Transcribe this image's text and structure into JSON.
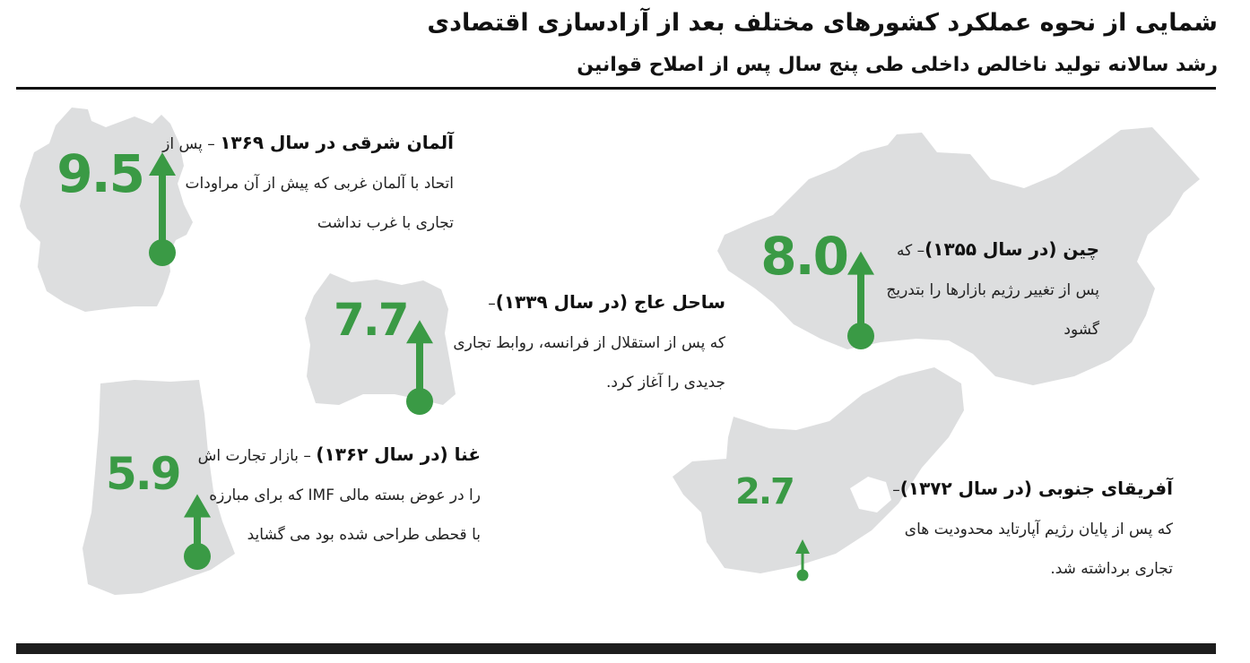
{
  "title": "شمایی از نحوه عملکرد کشورهای مختلف بعد از آزادسازی اقتصادی",
  "subtitle": "رشد سالانه تولید ناخالص داخلی طی پنج سال پس از اصلاح قوانین",
  "colors": {
    "accent": "#3a9a45",
    "map_fill": "#dddedf",
    "rule": "#111111"
  },
  "chart_data": {
    "type": "bar",
    "categories": [
      "آلمان شرقی",
      "ساحل عاج",
      "غنا",
      "چین",
      "آفریقای جنوبی"
    ],
    "values": [
      9.5,
      7.7,
      5.9,
      8.0,
      2.7
    ],
    "value_labels": [
      "9.5",
      "7.7",
      "5.9",
      "8.0",
      "2.7"
    ]
  },
  "items": [
    {
      "heading": "آلمان شرقی در سال ۱۳۶۹",
      "tail": " – پس از",
      "lines": [
        "اتحاد با آلمان غربی که پیش از آن مراودات",
        "تجاری با غرب نداشت"
      ]
    },
    {
      "heading": "ساحل عاج (در سال ۱۳۳۹)",
      "tail": "–",
      "lines": [
        "که پس از استقلال از فرانسه، روابط تجاری",
        "جدیدی را آغاز کرد."
      ]
    },
    {
      "heading": "غنا (در سال ۱۳۶۲)",
      "tail": " – بازار تجارت اش",
      "lines": [
        "را در عوض بسته مالی IMF که برای مبارزه",
        "با قحطی طراحی شده بود می گشاید"
      ]
    },
    {
      "heading": "چین (در سال ۱۳۵۵)",
      "tail": "– که",
      "lines": [
        "پس از تغییر رژیم بازارها را بتدریج",
        "گشود"
      ]
    },
    {
      "heading": "آفریقای جنوبی (در سال ۱۳۷۲)",
      "tail": "–",
      "lines": [
        "که پس از پایان رژیم آپارتاید محدودیت های",
        "تجاری برداشته شد."
      ]
    }
  ]
}
